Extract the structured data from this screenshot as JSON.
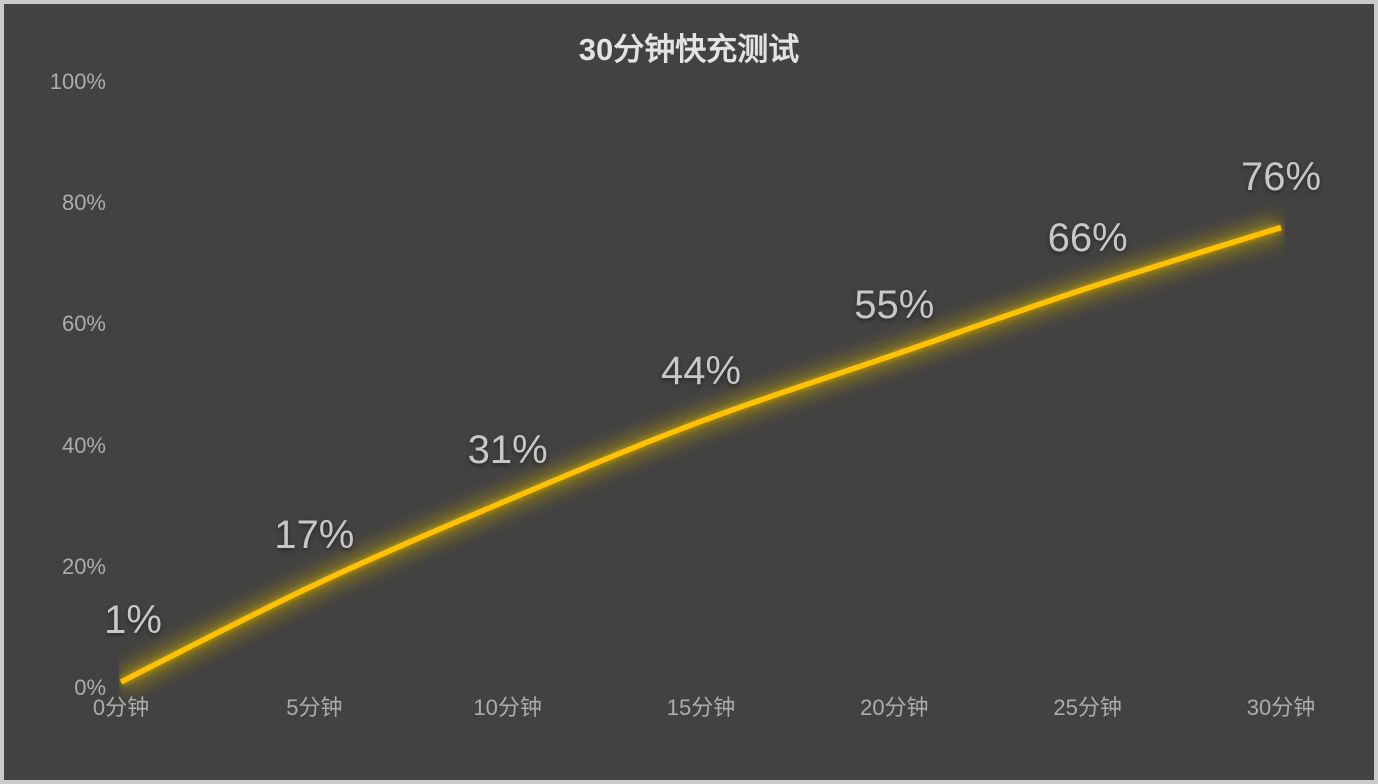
{
  "page": {
    "background_color": "#424242",
    "border_color": "#cbcbcb",
    "title_color": "#e3e3e3",
    "axis_label_color": "#acacac",
    "data_label_color": "#c7c7c7"
  },
  "chart_data": {
    "type": "line",
    "title": "30分钟快充测试",
    "categories": [
      "0分钟",
      "5分钟",
      "10分钟",
      "15分钟",
      "20分钟",
      "25分钟",
      "30分钟"
    ],
    "series": [
      {
        "values": [
          1,
          17,
          31,
          44,
          55,
          66,
          76
        ]
      }
    ],
    "data_labels": [
      "1%",
      "17%",
      "31%",
      "44%",
      "55%",
      "66%",
      "76%"
    ],
    "xlabel": "",
    "ylabel": "",
    "y_ticks": [
      "0%",
      "20%",
      "40%",
      "60%",
      "80%",
      "100%"
    ],
    "y_tick_values": [
      0,
      20,
      40,
      60,
      80,
      100
    ],
    "ylim": [
      0,
      100
    ],
    "grid": false,
    "legend": false,
    "data_label_position": "above",
    "line_color": "#FFC103",
    "glow_color": "#C8A400",
    "line_style": "smooth"
  }
}
